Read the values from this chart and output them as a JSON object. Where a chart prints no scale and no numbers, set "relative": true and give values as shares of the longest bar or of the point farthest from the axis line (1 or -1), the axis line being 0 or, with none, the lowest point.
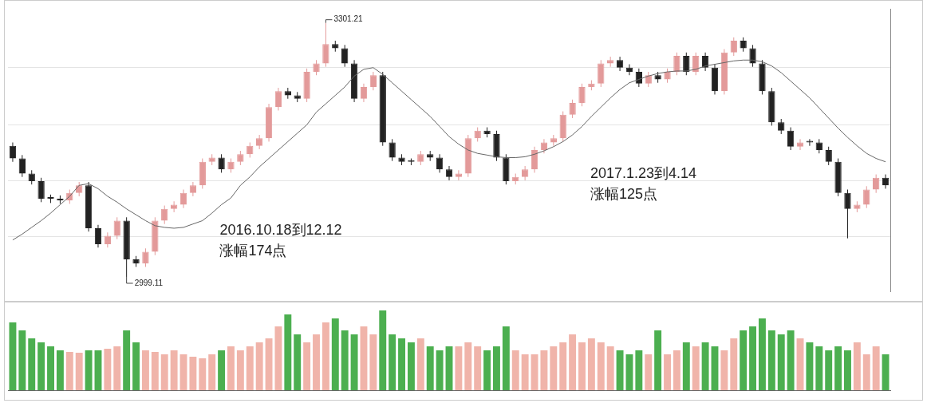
{
  "chart_data": [
    {
      "type": "candlestick",
      "categories": [
        null,
        null,
        null,
        null,
        null,
        null,
        null,
        null,
        null,
        null,
        null,
        null,
        null,
        null,
        null,
        null,
        null,
        null,
        null,
        null,
        null,
        null,
        null,
        null,
        null,
        null,
        null,
        null,
        null,
        null,
        null,
        null,
        null,
        null,
        null,
        null,
        null,
        null,
        null,
        null,
        null,
        null,
        null,
        null,
        null,
        null,
        null,
        null,
        null,
        null,
        null,
        null,
        null,
        null,
        null,
        null,
        null,
        null,
        null,
        null,
        null,
        null,
        null,
        null,
        null,
        null,
        null,
        null,
        null,
        null,
        null,
        null,
        null,
        null,
        null,
        null,
        null,
        null,
        null,
        null,
        null,
        null,
        null,
        null,
        null,
        null,
        null,
        null,
        null,
        null,
        null,
        null,
        null
      ],
      "ohlc": [
        [
          3155,
          3159,
          3136,
          3140
        ],
        [
          3140,
          3144,
          3118,
          3122
        ],
        [
          3122,
          3126,
          3109,
          3113
        ],
        [
          3113,
          3117,
          3088,
          3092
        ],
        [
          3092,
          3097,
          3087,
          3092
        ],
        [
          3092,
          3096,
          3086,
          3090
        ],
        [
          3090,
          3103,
          3086,
          3099
        ],
        [
          3099,
          3112,
          3095,
          3108
        ],
        [
          3108,
          3112,
          3053,
          3057
        ],
        [
          3057,
          3061,
          3034,
          3038
        ],
        [
          3038,
          3052,
          3034,
          3048
        ],
        [
          3048,
          3070,
          3044,
          3066
        ],
        [
          3066,
          3070,
          2999.11,
          3020
        ],
        [
          3020,
          3024,
          3011,
          3015
        ],
        [
          3015,
          3033,
          3011,
          3029
        ],
        [
          3029,
          3070,
          3025,
          3066
        ],
        [
          3066,
          3084,
          3062,
          3080
        ],
        [
          3080,
          3089,
          3076,
          3085
        ],
        [
          3085,
          3103,
          3081,
          3099
        ],
        [
          3099,
          3112,
          3095,
          3108
        ],
        [
          3108,
          3140,
          3104,
          3136
        ],
        [
          3136,
          3145,
          3132,
          3141
        ],
        [
          3141,
          3145,
          3123,
          3127
        ],
        [
          3127,
          3140,
          3123,
          3136
        ],
        [
          3136,
          3149,
          3132,
          3145
        ],
        [
          3145,
          3159,
          3141,
          3155
        ],
        [
          3155,
          3168,
          3151,
          3164
        ],
        [
          3164,
          3205,
          3160,
          3201
        ],
        [
          3201,
          3224,
          3197,
          3220
        ],
        [
          3220,
          3224,
          3211,
          3215
        ],
        [
          3215,
          3219,
          3207,
          3211
        ],
        [
          3211,
          3247,
          3207,
          3243
        ],
        [
          3243,
          3257,
          3239,
          3253
        ],
        [
          3253,
          3301.21,
          3249,
          3276
        ],
        [
          3276,
          3280,
          3267,
          3271
        ],
        [
          3271,
          3275,
          3249,
          3253
        ],
        [
          3253,
          3257,
          3207,
          3211
        ],
        [
          3211,
          3229,
          3207,
          3225
        ],
        [
          3225,
          3243,
          3221,
          3239
        ],
        [
          3239,
          3243,
          3155,
          3159
        ],
        [
          3159,
          3163,
          3137,
          3141
        ],
        [
          3141,
          3145,
          3132,
          3136
        ],
        [
          3136,
          3140,
          3132,
          3136
        ],
        [
          3136,
          3149,
          3132,
          3145
        ],
        [
          3145,
          3149,
          3137,
          3141
        ],
        [
          3141,
          3145,
          3123,
          3127
        ],
        [
          3127,
          3131,
          3114,
          3118
        ],
        [
          3118,
          3126,
          3114,
          3122
        ],
        [
          3122,
          3168,
          3118,
          3164
        ],
        [
          3164,
          3177,
          3160,
          3173
        ],
        [
          3173,
          3177,
          3165,
          3169
        ],
        [
          3169,
          3173,
          3137,
          3141
        ],
        [
          3141,
          3145,
          3109,
          3113
        ],
        [
          3113,
          3122,
          3109,
          3118
        ],
        [
          3118,
          3131,
          3114,
          3127
        ],
        [
          3127,
          3154,
          3123,
          3150
        ],
        [
          3150,
          3163,
          3146,
          3159
        ],
        [
          3159,
          3168,
          3155,
          3164
        ],
        [
          3164,
          3196,
          3160,
          3192
        ],
        [
          3192,
          3210,
          3188,
          3206
        ],
        [
          3206,
          3229,
          3202,
          3225
        ],
        [
          3225,
          3233,
          3221,
          3229
        ],
        [
          3229,
          3257,
          3225,
          3253
        ],
        [
          3253,
          3261,
          3249,
          3257
        ],
        [
          3257,
          3261,
          3244,
          3248
        ],
        [
          3248,
          3252,
          3239,
          3243
        ],
        [
          3243,
          3247,
          3225,
          3229
        ],
        [
          3229,
          3243,
          3225,
          3239
        ],
        [
          3239,
          3243,
          3230,
          3234
        ],
        [
          3234,
          3247,
          3230,
          3243
        ],
        [
          3243,
          3266,
          3239,
          3262
        ],
        [
          3262,
          3266,
          3239,
          3243
        ],
        [
          3243,
          3266,
          3239,
          3262
        ],
        [
          3262,
          3266,
          3244,
          3248
        ],
        [
          3248,
          3252,
          3216,
          3220
        ],
        [
          3220,
          3270,
          3216,
          3266
        ],
        [
          3266,
          3284,
          3262,
          3280
        ],
        [
          3280,
          3284,
          3267,
          3271
        ],
        [
          3271,
          3275,
          3249,
          3253
        ],
        [
          3253,
          3257,
          3216,
          3220
        ],
        [
          3220,
          3224,
          3179,
          3183
        ],
        [
          3183,
          3187,
          3169,
          3173
        ],
        [
          3173,
          3177,
          3150,
          3154
        ],
        [
          3154,
          3163,
          3150,
          3159
        ],
        [
          3159,
          3163,
          3155,
          3159
        ],
        [
          3159,
          3163,
          3146,
          3150
        ],
        [
          3150,
          3154,
          3132,
          3136
        ],
        [
          3136,
          3140,
          3095,
          3099
        ],
        [
          3099,
          3103,
          3045,
          3080
        ],
        [
          3080,
          3089,
          3076,
          3085
        ],
        [
          3085,
          3107,
          3081,
          3103
        ],
        [
          3103,
          3121,
          3099,
          3117
        ],
        [
          3117,
          3121,
          3104,
          3108
        ]
      ],
      "colors": [
        "#222222",
        "#222222",
        "#222222",
        "#222222",
        "#222222",
        "#222222",
        "#e39a9a",
        "#e39a9a",
        "#222222",
        "#222222",
        "#e39a9a",
        "#e39a9a",
        "#222222",
        "#222222",
        "#e39a9a",
        "#e39a9a",
        "#e39a9a",
        "#e39a9a",
        "#e39a9a",
        "#e39a9a",
        "#e39a9a",
        "#e39a9a",
        "#222222",
        "#e39a9a",
        "#e39a9a",
        "#e39a9a",
        "#e39a9a",
        "#e39a9a",
        "#e39a9a",
        "#222222",
        "#222222",
        "#e39a9a",
        "#e39a9a",
        "#e39a9a",
        "#222222",
        "#222222",
        "#222222",
        "#e39a9a",
        "#e39a9a",
        "#222222",
        "#222222",
        "#222222",
        "#222222",
        "#e39a9a",
        "#222222",
        "#222222",
        "#222222",
        "#e39a9a",
        "#e39a9a",
        "#e39a9a",
        "#222222",
        "#222222",
        "#222222",
        "#e39a9a",
        "#e39a9a",
        "#e39a9a",
        "#e39a9a",
        "#e39a9a",
        "#e39a9a",
        "#e39a9a",
        "#e39a9a",
        "#e39a9a",
        "#e39a9a",
        "#e39a9a",
        "#222222",
        "#222222",
        "#222222",
        "#e39a9a",
        "#222222",
        "#e39a9a",
        "#e39a9a",
        "#222222",
        "#e39a9a",
        "#222222",
        "#222222",
        "#e39a9a",
        "#e39a9a",
        "#222222",
        "#222222",
        "#222222",
        "#222222",
        "#222222",
        "#222222",
        "#e39a9a",
        "#222222",
        "#222222",
        "#222222",
        "#222222",
        "#222222",
        "#e39a9a",
        "#e39a9a",
        "#e39a9a",
        "#222222"
      ],
      "series": [
        {
          "type": "line",
          "color": "#666666",
          "values": [
            3043,
            3050,
            3058,
            3066,
            3075,
            3085,
            3095,
            3108,
            3110,
            3104,
            3095,
            3088,
            3080,
            3073,
            3066,
            3060,
            3058,
            3057,
            3058,
            3062,
            3066,
            3075,
            3085,
            3093,
            3108,
            3118,
            3130,
            3140,
            3150,
            3160,
            3170,
            3180,
            3195,
            3205,
            3215,
            3225,
            3238,
            3246,
            3248,
            3240,
            3230,
            3220,
            3210,
            3200,
            3190,
            3178,
            3166,
            3157,
            3150,
            3146,
            3144,
            3142,
            3141,
            3141,
            3142,
            3145,
            3149,
            3154,
            3160,
            3168,
            3178,
            3190,
            3201,
            3212,
            3222,
            3230,
            3234,
            3238,
            3241,
            3243,
            3244,
            3244,
            3246,
            3250,
            3252,
            3254,
            3256,
            3257,
            3257,
            3255,
            3250,
            3242,
            3232,
            3222,
            3212,
            3200,
            3188,
            3176,
            3165,
            3155,
            3146,
            3140,
            3136
          ]
        }
      ],
      "ylim": [
        2982,
        3318
      ],
      "yticks": [
        {
          "value": 3047,
          "label": null
        },
        {
          "value": 3113,
          "label": null
        },
        {
          "value": 3180,
          "label": null
        },
        {
          "value": 3248,
          "label": null
        }
      ],
      "grid": "y",
      "tick_labels": false,
      "annotations": [
        "3301.21",
        "2999.11",
        "2016.10.18到12.12\n涨幅174点",
        "2017.1.23到4.14\n涨幅125点"
      ]
    },
    {
      "type": "bar",
      "relative": true,
      "tick_labels": false,
      "categories": [
        null,
        null,
        null,
        null,
        null,
        null,
        null,
        null,
        null,
        null,
        null,
        null,
        null,
        null,
        null,
        null,
        null,
        null,
        null,
        null,
        null,
        null,
        null,
        null,
        null,
        null,
        null,
        null,
        null,
        null,
        null,
        null,
        null,
        null,
        null,
        null,
        null,
        null,
        null,
        null,
        null,
        null,
        null,
        null,
        null,
        null,
        null,
        null,
        null,
        null,
        null,
        null,
        null,
        null,
        null,
        null,
        null,
        null,
        null,
        null,
        null,
        null,
        null,
        null,
        null,
        null,
        null,
        null,
        null,
        null,
        null,
        null,
        null,
        null,
        null,
        null,
        null,
        null,
        null,
        null,
        null,
        null,
        null,
        null,
        null,
        null,
        null,
        null,
        null,
        null,
        null,
        null,
        null
      ],
      "values": [
        0.85,
        0.75,
        0.65,
        0.6,
        0.55,
        0.5,
        0.48,
        0.47,
        0.5,
        0.5,
        0.52,
        0.55,
        0.75,
        0.6,
        0.5,
        0.48,
        0.45,
        0.5,
        0.45,
        0.42,
        0.4,
        0.45,
        0.5,
        0.55,
        0.5,
        0.55,
        0.6,
        0.65,
        0.8,
        0.95,
        0.7,
        0.6,
        0.7,
        0.85,
        0.9,
        0.75,
        0.7,
        0.8,
        0.7,
        1.0,
        0.7,
        0.65,
        0.6,
        0.65,
        0.55,
        0.5,
        0.55,
        0.55,
        0.6,
        0.55,
        0.5,
        0.55,
        0.8,
        0.5,
        0.45,
        0.45,
        0.5,
        0.55,
        0.6,
        0.7,
        0.6,
        0.65,
        0.6,
        0.55,
        0.5,
        0.45,
        0.5,
        0.45,
        0.75,
        0.45,
        0.5,
        0.6,
        0.55,
        0.6,
        0.55,
        0.5,
        0.65,
        0.75,
        0.8,
        0.9,
        0.75,
        0.7,
        0.75,
        0.65,
        0.6,
        0.55,
        0.5,
        0.55,
        0.5,
        0.6,
        0.45,
        0.55,
        0.45
      ],
      "colors": [
        "#4caf50",
        "#4caf50",
        "#4caf50",
        "#4caf50",
        "#4caf50",
        "#4caf50",
        "#f0b4aa",
        "#f0b4aa",
        "#4caf50",
        "#4caf50",
        "#f0b4aa",
        "#f0b4aa",
        "#4caf50",
        "#4caf50",
        "#f0b4aa",
        "#f0b4aa",
        "#f0b4aa",
        "#f0b4aa",
        "#f0b4aa",
        "#f0b4aa",
        "#f0b4aa",
        "#f0b4aa",
        "#4caf50",
        "#f0b4aa",
        "#f0b4aa",
        "#f0b4aa",
        "#f0b4aa",
        "#f0b4aa",
        "#f0b4aa",
        "#4caf50",
        "#4caf50",
        "#f0b4aa",
        "#f0b4aa",
        "#f0b4aa",
        "#4caf50",
        "#4caf50",
        "#4caf50",
        "#f0b4aa",
        "#f0b4aa",
        "#4caf50",
        "#4caf50",
        "#4caf50",
        "#4caf50",
        "#f0b4aa",
        "#4caf50",
        "#4caf50",
        "#4caf50",
        "#f0b4aa",
        "#f0b4aa",
        "#f0b4aa",
        "#4caf50",
        "#4caf50",
        "#4caf50",
        "#f0b4aa",
        "#f0b4aa",
        "#f0b4aa",
        "#f0b4aa",
        "#f0b4aa",
        "#f0b4aa",
        "#f0b4aa",
        "#f0b4aa",
        "#f0b4aa",
        "#f0b4aa",
        "#f0b4aa",
        "#4caf50",
        "#4caf50",
        "#4caf50",
        "#f0b4aa",
        "#4caf50",
        "#f0b4aa",
        "#f0b4aa",
        "#4caf50",
        "#f0b4aa",
        "#4caf50",
        "#4caf50",
        "#f0b4aa",
        "#f0b4aa",
        "#4caf50",
        "#4caf50",
        "#4caf50",
        "#4caf50",
        "#4caf50",
        "#4caf50",
        "#f0b4aa",
        "#4caf50",
        "#4caf50",
        "#4caf50",
        "#4caf50",
        "#4caf50",
        "#f0b4aa",
        "#f0b4aa",
        "#f0b4aa",
        "#4caf50"
      ]
    }
  ]
}
